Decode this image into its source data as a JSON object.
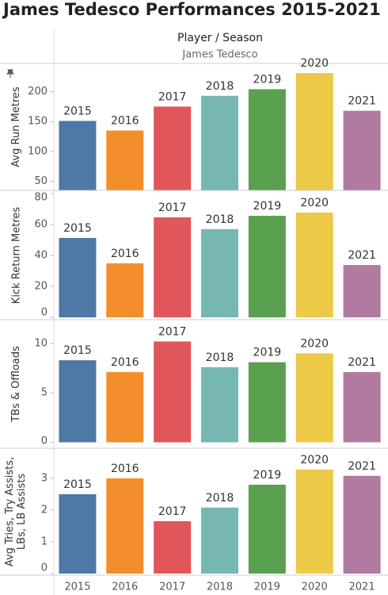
{
  "title": "James Tedesco Performances 2015-2021",
  "header": {
    "column_title": "Player / Season",
    "player": "James Tedesco"
  },
  "chart_data": [
    {
      "type": "bar",
      "y_label": "Avg Run Metres",
      "categories": [
        "2015",
        "2016",
        "2017",
        "2018",
        "2019",
        "2020",
        "2021"
      ],
      "values": [
        151,
        135,
        175,
        193,
        204,
        231,
        168
      ],
      "colors": [
        "#4e79a7",
        "#f28e2b",
        "#e15759",
        "#76b7b2",
        "#59a14f",
        "#edc948",
        "#b07aa1"
      ],
      "ylim": [
        35,
        247
      ],
      "yticks": [
        50,
        100,
        150,
        200
      ]
    },
    {
      "type": "bar",
      "y_label": "Kick Return Metres",
      "categories": [
        "2015",
        "2016",
        "2017",
        "2018",
        "2019",
        "2020",
        "2021"
      ],
      "values": [
        51.3,
        34.9,
        64.6,
        57,
        65.6,
        67.7,
        33.8
      ],
      "colors": [
        "#4e79a7",
        "#f28e2b",
        "#e15759",
        "#76b7b2",
        "#59a14f",
        "#edc948",
        "#b07aa1"
      ],
      "ylim": [
        -1.5,
        82
      ],
      "yticks": [
        0,
        20,
        40,
        60,
        80
      ]
    },
    {
      "type": "bar",
      "y_label": "TBs & Offloads",
      "categories": [
        "2015",
        "2016",
        "2017",
        "2018",
        "2019",
        "2020",
        "2021"
      ],
      "values": [
        8.3,
        7.1,
        10.2,
        7.6,
        8.1,
        9.0,
        7.1
      ],
      "colors": [
        "#4e79a7",
        "#f28e2b",
        "#e15759",
        "#76b7b2",
        "#59a14f",
        "#edc948",
        "#b07aa1"
      ],
      "ylim": [
        -0.6,
        12.4
      ],
      "yticks": [
        0,
        5,
        10
      ]
    },
    {
      "type": "bar",
      "y_label": "Avg Tries, Try Assists, LBs, LB Assists",
      "categories": [
        "2015",
        "2016",
        "2017",
        "2018",
        "2019",
        "2020",
        "2021"
      ],
      "values": [
        2.5,
        3.0,
        1.65,
        2.08,
        2.8,
        3.28,
        3.08
      ],
      "colors": [
        "#4e79a7",
        "#f28e2b",
        "#e15759",
        "#76b7b2",
        "#59a14f",
        "#edc948",
        "#b07aa1"
      ],
      "ylim": [
        -0.05,
        3.95
      ],
      "yticks": [
        0,
        1,
        2,
        3
      ]
    }
  ]
}
